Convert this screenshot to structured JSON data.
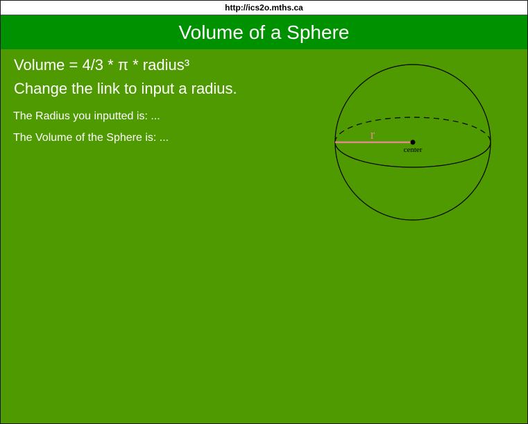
{
  "browser": {
    "url": "http://ics2o.mths.ca"
  },
  "header": {
    "title": "Volume of a Sphere"
  },
  "main": {
    "formula": "Volume = 4/3 * π * radius³",
    "instruction": "Change the link to input a radius.",
    "radius_text": "The Radius you inputted is: ...",
    "volume_text": "The Volume of the Sphere is: ..."
  },
  "diagram": {
    "radius_label": "r",
    "center_label": "center",
    "radius_color": "#e08a8a"
  },
  "colors": {
    "header_bg": "#009100",
    "body_bg": "#4e9a00",
    "text": "#ffffff"
  }
}
